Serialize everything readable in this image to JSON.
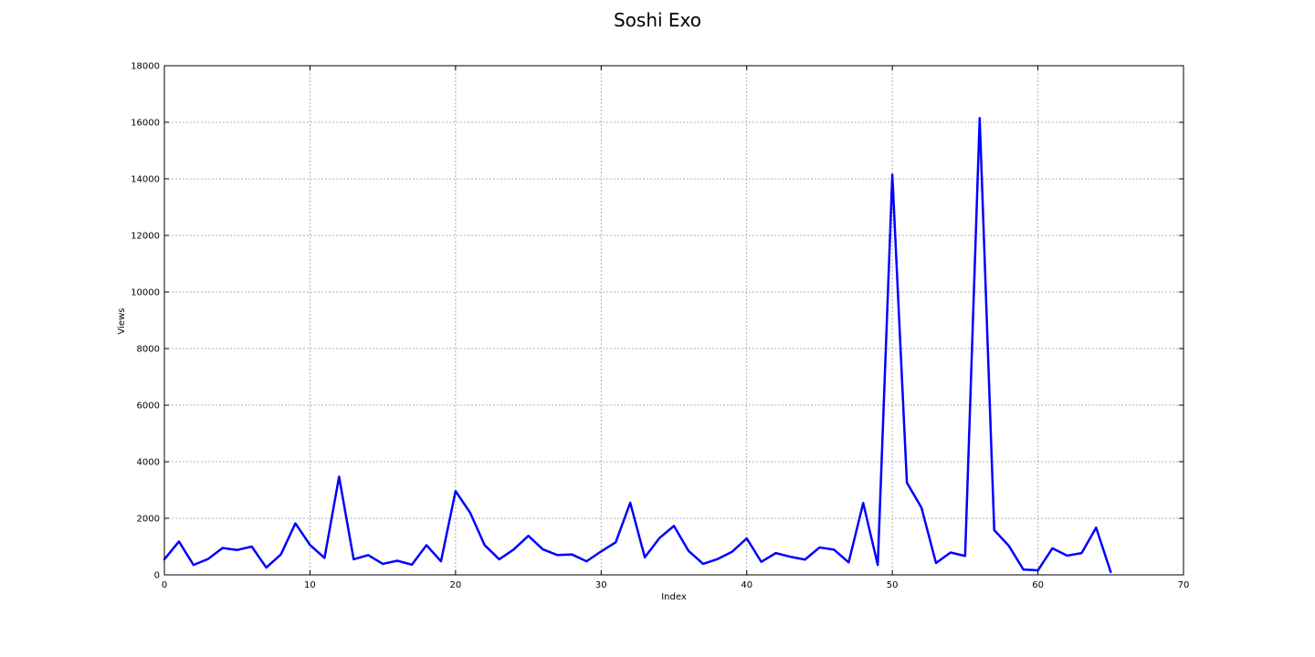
{
  "chart_data": {
    "type": "line",
    "title": "Soshi Exo",
    "xlabel": "Index",
    "ylabel": "Views",
    "xlim": [
      0,
      70
    ],
    "ylim": [
      0,
      18000
    ],
    "x_ticks": [
      0,
      10,
      20,
      30,
      40,
      50,
      60,
      70
    ],
    "y_ticks": [
      0,
      2000,
      4000,
      6000,
      8000,
      10000,
      12000,
      14000,
      16000,
      18000
    ],
    "grid": true,
    "line_color": "#0000ff",
    "series": [
      {
        "x": [
          0,
          1,
          2,
          3,
          4,
          5,
          6,
          7,
          8,
          9,
          10,
          11,
          12,
          13,
          14,
          15,
          16,
          17,
          18,
          19,
          20,
          21,
          22,
          23,
          24,
          25,
          26,
          27,
          28,
          29,
          30,
          31,
          32,
          33,
          34,
          35,
          36,
          37,
          38,
          39,
          40,
          41,
          42,
          43,
          44,
          45,
          46,
          47,
          48,
          49,
          50,
          51,
          52,
          53,
          54,
          55,
          56,
          57,
          58,
          59,
          60,
          61,
          62,
          63,
          64,
          65
        ],
        "values": [
          550,
          1180,
          350,
          560,
          950,
          880,
          1000,
          260,
          720,
          1820,
          1060,
          600,
          3470,
          550,
          700,
          390,
          500,
          360,
          1050,
          480,
          2960,
          2200,
          1050,
          550,
          900,
          1380,
          900,
          700,
          720,
          480,
          830,
          1150,
          2550,
          620,
          1300,
          1730,
          850,
          390,
          560,
          820,
          1290,
          460,
          770,
          640,
          540,
          970,
          890,
          440,
          2540,
          350,
          14150,
          3260,
          2380,
          420,
          790,
          670,
          16150,
          1580,
          1030,
          190,
          160,
          940,
          680,
          770,
          1670,
          100
        ]
      }
    ]
  }
}
